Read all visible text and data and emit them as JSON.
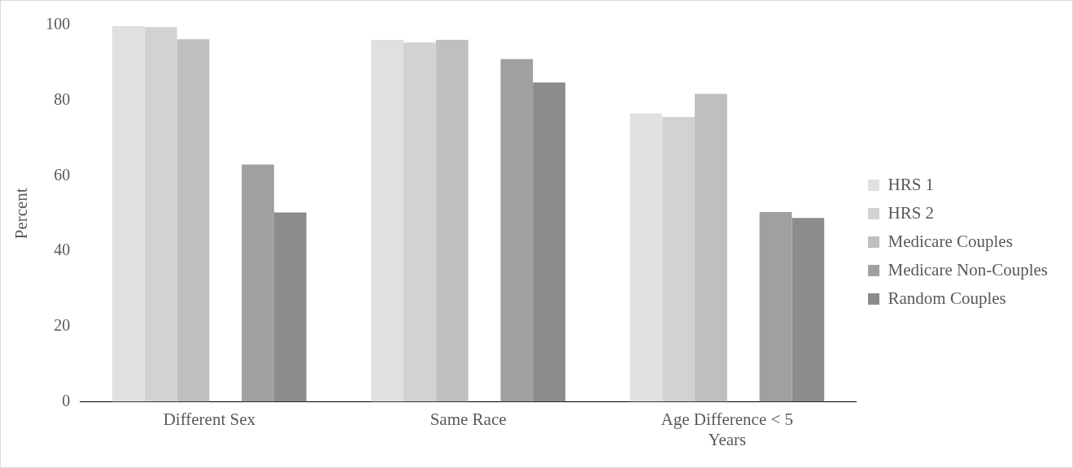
{
  "chart_data": {
    "type": "bar",
    "ylabel": "Percent",
    "categories": [
      "Different Sex",
      "Same Race",
      "Age Difference < 5 Years"
    ],
    "series": [
      {
        "name": "HRS 1",
        "color": "#e0e0e0",
        "values": [
          99.8,
          96.1,
          76.6
        ]
      },
      {
        "name": "HRS 2",
        "color": "#d2d2d2",
        "values": [
          99.5,
          95.4,
          75.6
        ]
      },
      {
        "name": "Medicare Couples",
        "color": "#bfbfbf",
        "values": [
          96.3,
          96.1,
          81.8
        ]
      },
      {
        "name": "Medicare Non-Couples",
        "color": "#a0a0a0",
        "values": [
          63,
          91,
          50.4
        ]
      },
      {
        "name": "Random Couples",
        "color": "#8c8c8c",
        "values": [
          50.3,
          84.8,
          48.8
        ]
      }
    ],
    "ylim": [
      0,
      100
    ],
    "yticks": [
      0,
      20,
      40,
      60,
      80,
      100
    ],
    "grid": false,
    "legend": "right"
  }
}
